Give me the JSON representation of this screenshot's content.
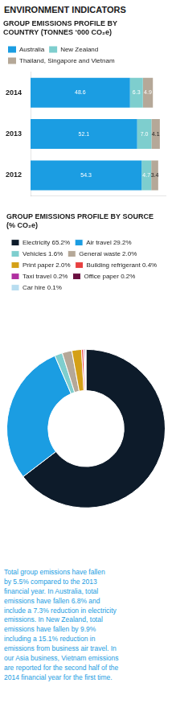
{
  "title": "ENVIRONMENT INDICATORS",
  "annotations": [
    "Total group emissions have fallen\nby 5.5% compared to the 2013\nfinancial year. In Australia, total\nemissions have fallen 6.8% and\ninclude a 7.3% reduction in electricity\nemissions. In New Zealand, total\nemissions have fallen by 9.9%\nincluding a 15.1% reduction in\nemissions from business air travel. In\nour Asia business, Vietnam emissions\nare reported for the second half of the\n2014 financial year for the first time."
  ],
  "chart_data": [
    {
      "type": "bar",
      "title": "GROUP EMISSIONS PROFILE BY\nCOUNTRY (TONNES ‘000 CO₂e)",
      "orientation": "horizontal",
      "stacked": true,
      "data_labels": true,
      "legend": "top",
      "grid": false,
      "tick_labels": "y",
      "categories": [
        "2014",
        "2013",
        "2012"
      ],
      "xlim": [
        0,
        66
      ],
      "series": [
        {
          "name": "Australia",
          "color": "#1b9de2",
          "values": [
            48.6,
            52.1,
            54.3
          ],
          "value_labels": [
            "48.6",
            "52.1",
            "54.3"
          ]
        },
        {
          "name": "New Zealand",
          "color": "#7ecece",
          "values": [
            6.3,
            7.0,
            4.7
          ],
          "value_labels": [
            "6.3",
            "7.0",
            "4.7"
          ]
        },
        {
          "name": "Thailand, Singapore and Vietnam",
          "color": "#b5a898",
          "values": [
            4.9,
            4.1,
            3.4
          ],
          "value_labels": [
            "4.9",
            "4.1",
            "3.4"
          ]
        }
      ]
    },
    {
      "type": "doughnut",
      "title": "GROUP EMISSIONS PROFILE BY SOURCE\n(% CO₂e)",
      "legend": "top",
      "categories": [
        "Electricity 65.2%",
        "Air travel 29.2%",
        "Vehicles 1.6%",
        "General waste 2.0%",
        "Print paper 2.0%",
        "Building refrigerant 0.4%",
        "Taxi travel 0.2%",
        "Office paper 0.2%",
        "Car hire 0.1%"
      ],
      "values": [
        65.2,
        29.2,
        1.6,
        2.0,
        2.0,
        0.4,
        0.2,
        0.2,
        0.1
      ],
      "colors": [
        "#0d1b2a",
        "#1b9de2",
        "#7ecece",
        "#b5a898",
        "#d4a017",
        "#e84040",
        "#b030a0",
        "#6a1040",
        "#b8ddf0"
      ]
    }
  ]
}
